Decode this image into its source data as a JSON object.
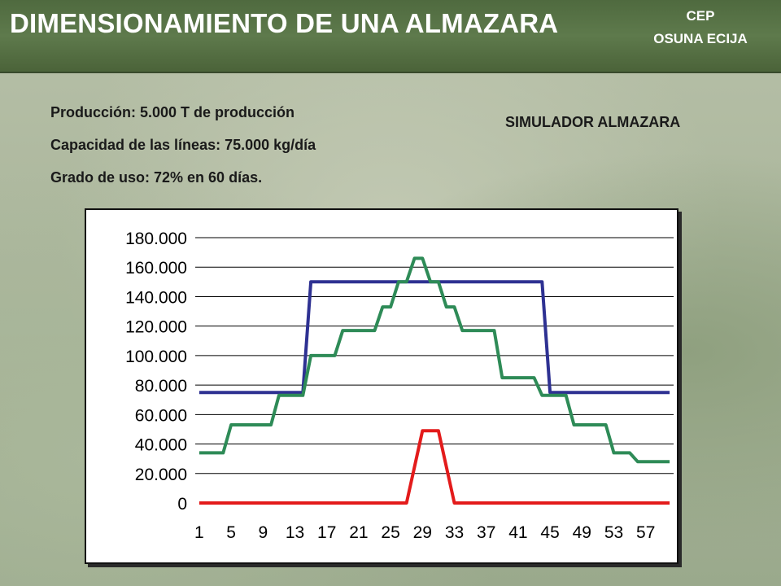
{
  "header": {
    "title": "DIMENSIONAMIENTO DE UNA ALMAZARA",
    "org_line1": "CEP",
    "org_line2": "OSUNA ECIJA"
  },
  "info": {
    "produccion": "Producción: 5.000 T de producción",
    "capacidad": "Capacidad de las líneas: 75.000 kg/día",
    "grado": "Grado de uso: 72% en 60 días."
  },
  "simulator_label": "SIMULADOR ALMAZARA",
  "colors": {
    "series_blue": "#2e3192",
    "series_green": "#2e8b57",
    "series_red": "#e31b1b",
    "grid": "#000000",
    "header_band": "#56713f"
  },
  "chart_data": {
    "type": "line",
    "title": "",
    "xlabel": "",
    "ylabel": "",
    "ylim": [
      0,
      180000
    ],
    "yticks": [
      0,
      20000,
      40000,
      60000,
      80000,
      100000,
      120000,
      140000,
      160000,
      180000
    ],
    "ytick_labels": [
      "0",
      "20.000",
      "40.000",
      "60.000",
      "80.000",
      "100.000",
      "120.000",
      "140.000",
      "160.000",
      "180.000"
    ],
    "xlim": [
      1,
      60
    ],
    "xtick_labels": [
      "1",
      "5",
      "9",
      "13",
      "17",
      "21",
      "25",
      "29",
      "33",
      "37",
      "41",
      "45",
      "49",
      "53",
      "57"
    ],
    "grid": "horizontal",
    "legend": "none",
    "series": [
      {
        "color": "#2e3192",
        "x": [
          1,
          14,
          15,
          44,
          45,
          60
        ],
        "y": [
          75000,
          75000,
          150000,
          150000,
          75000,
          75000
        ]
      },
      {
        "color": "#2e8b57",
        "x": [
          1,
          4,
          5,
          10,
          11,
          14,
          15,
          18,
          19,
          23,
          24,
          25,
          26,
          27,
          28,
          29,
          30,
          31,
          32,
          33,
          34,
          35,
          38,
          39,
          43,
          44,
          47,
          48,
          52,
          53,
          55,
          56,
          60
        ],
        "y": [
          34000,
          34000,
          53000,
          53000,
          73000,
          73000,
          100000,
          100000,
          117000,
          117000,
          133000,
          133000,
          150000,
          150000,
          166000,
          166000,
          150000,
          150000,
          133000,
          133000,
          117000,
          117000,
          117000,
          85000,
          85000,
          73000,
          73000,
          53000,
          53000,
          34000,
          34000,
          28000,
          28000
        ]
      },
      {
        "color": "#e31b1b",
        "x": [
          1,
          27,
          29,
          31,
          33,
          60
        ],
        "y": [
          0,
          0,
          49000,
          49000,
          0,
          0
        ]
      }
    ]
  }
}
